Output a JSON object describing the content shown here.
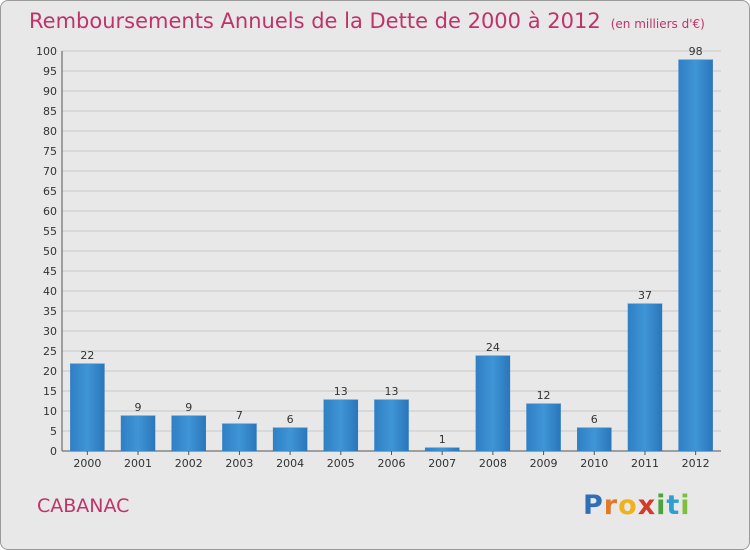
{
  "chart_data": {
    "type": "bar",
    "title": "Remboursements Annuels de la Dette de 2000 à 2012",
    "unit_note": "(en milliers d'€)",
    "categories": [
      "2000",
      "2001",
      "2002",
      "2003",
      "2004",
      "2005",
      "2006",
      "2007",
      "2008",
      "2009",
      "2010",
      "2011",
      "2012"
    ],
    "values": [
      22,
      9,
      9,
      7,
      6,
      13,
      13,
      1,
      24,
      12,
      6,
      37,
      98
    ],
    "ylim": [
      0,
      100
    ],
    "ytick_step": 5,
    "grid": true,
    "bar_color": "#3f95d6",
    "xlabel": "",
    "ylabel": ""
  },
  "footer": {
    "city": "CABANAC",
    "logo_letters": [
      {
        "ch": "P",
        "color": "#2f6fb6"
      },
      {
        "ch": "r",
        "color": "#e07a2a"
      },
      {
        "ch": "o",
        "color": "#f0b21a"
      },
      {
        "ch": "x",
        "color": "#d33a2c"
      },
      {
        "ch": "i",
        "color": "#4aa43a"
      },
      {
        "ch": "t",
        "color": "#2f9fd0"
      },
      {
        "ch": "i",
        "color": "#7fbf3f"
      }
    ]
  }
}
